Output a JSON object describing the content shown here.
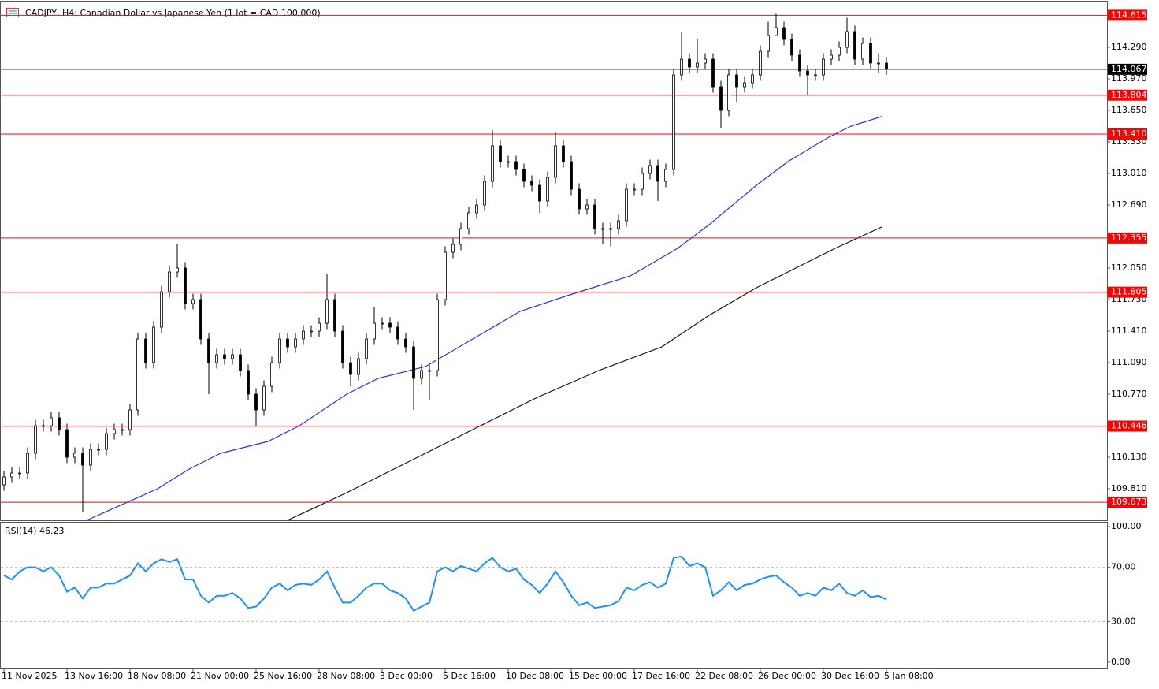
{
  "chart_data": {
    "type": "candlestick",
    "title": "CADJPY, H4:  Canadian Dollar vs Japanese Yen (1 lot = CAD 100,000)",
    "categories": [
      "11 Nov 2025",
      null,
      null,
      null,
      null,
      null,
      null,
      null,
      "13 Nov 16:00",
      null,
      null,
      null,
      null,
      null,
      null,
      null,
      "18 Nov 08:00",
      null,
      null,
      null,
      null,
      null,
      null,
      null,
      "21 Nov 00:00",
      null,
      null,
      null,
      null,
      null,
      null,
      null,
      "25 Nov 16:00",
      null,
      null,
      null,
      null,
      null,
      null,
      null,
      "28 Nov 08:00",
      null,
      null,
      null,
      null,
      null,
      null,
      null,
      "3 Dec 00:00",
      null,
      null,
      null,
      null,
      null,
      null,
      null,
      "5 Dec 16:00",
      null,
      null,
      null,
      null,
      null,
      null,
      null,
      "10 Dec 08:00",
      null,
      null,
      null,
      null,
      null,
      null,
      null,
      "15 Dec 00:00",
      null,
      null,
      null,
      null,
      null,
      null,
      null,
      "17 Dec 16:00",
      null,
      null,
      null,
      null,
      null,
      null,
      null,
      "22 Dec 08:00",
      null,
      null,
      null,
      null,
      null,
      null,
      null,
      "26 Dec 00:00",
      null,
      null,
      null,
      null,
      null,
      null,
      null,
      "30 Dec 16:00",
      null,
      null,
      null,
      null,
      null,
      null,
      null,
      "5 Jan 08:00"
    ],
    "open": [
      109.85,
      109.93,
      109.97,
      109.97,
      110.17,
      110.45,
      110.45,
      110.53,
      110.41,
      110.13,
      110.17,
      110.05,
      110.21,
      110.21,
      110.37,
      110.41,
      110.41,
      110.61,
      111.33,
      111.09,
      111.45,
      111.81,
      112.01,
      112.05,
      111.69,
      111.73,
      111.33,
      111.09,
      111.17,
      111.13,
      111.17,
      111.01,
      110.77,
      110.61,
      110.85,
      111.09,
      111.33,
      111.25,
      111.33,
      111.41,
      111.41,
      111.49,
      111.73,
      111.41,
      111.09,
      110.97,
      111.13,
      111.33,
      111.49,
      111.49,
      111.45,
      111.33,
      111.25,
      110.93,
      111.01,
      111.01,
      111.73,
      112.21,
      112.29,
      112.45,
      112.61,
      112.69,
      112.93,
      113.29,
      113.13,
      113.13,
      113.05,
      112.93,
      112.89,
      112.73,
      112.97,
      113.29,
      113.13,
      112.85,
      112.65,
      112.69,
      112.45,
      112.45,
      112.45,
      112.53,
      112.85,
      112.85,
      113.01,
      113.09,
      112.93,
      113.05,
      114.01,
      114.17,
      114.09,
      114.13,
      114.17,
      113.89,
      113.65,
      114.01,
      113.89,
      113.93,
      114.01,
      114.25,
      114.41,
      114.49,
      114.37,
      114.21,
      114.05,
      114.01,
      114.01,
      114.17,
      114.21,
      114.29,
      114.45,
      114.17,
      114.33,
      114.13,
      114.13
    ],
    "high": [
      109.99,
      110.03,
      110.03,
      110.23,
      110.51,
      110.51,
      110.59,
      110.59,
      110.47,
      110.23,
      110.23,
      110.27,
      110.27,
      110.43,
      110.47,
      110.47,
      110.67,
      111.39,
      111.39,
      111.51,
      111.87,
      112.07,
      112.29,
      112.11,
      111.79,
      111.79,
      111.39,
      111.23,
      111.23,
      111.23,
      111.23,
      111.07,
      110.83,
      110.91,
      111.15,
      111.39,
      111.39,
      111.39,
      111.47,
      111.47,
      111.55,
      111.99,
      111.79,
      111.47,
      111.15,
      111.19,
      111.39,
      111.65,
      111.55,
      111.55,
      111.51,
      111.39,
      111.31,
      111.07,
      111.07,
      111.79,
      112.27,
      112.35,
      112.51,
      112.67,
      112.75,
      112.99,
      113.45,
      113.35,
      113.19,
      113.19,
      113.11,
      112.99,
      112.95,
      113.03,
      113.43,
      113.35,
      113.19,
      112.91,
      112.75,
      112.75,
      112.51,
      112.51,
      112.59,
      112.91,
      112.91,
      113.07,
      113.15,
      113.15,
      113.11,
      114.07,
      114.45,
      114.23,
      114.37,
      114.23,
      114.23,
      113.95,
      114.07,
      114.07,
      113.99,
      114.07,
      114.31,
      114.55,
      114.63,
      114.55,
      114.43,
      114.27,
      114.11,
      114.07,
      114.23,
      114.27,
      114.35,
      114.59,
      114.51,
      114.39,
      114.39,
      114.23,
      114.19
    ],
    "low": [
      109.79,
      109.87,
      109.91,
      109.91,
      110.11,
      110.39,
      110.39,
      110.35,
      110.07,
      110.07,
      109.57,
      109.99,
      110.15,
      110.15,
      110.31,
      110.35,
      110.35,
      110.55,
      111.03,
      111.03,
      111.39,
      111.75,
      111.95,
      111.63,
      111.63,
      111.27,
      110.77,
      111.03,
      111.07,
      111.07,
      110.95,
      110.71,
      110.45,
      110.55,
      110.79,
      111.03,
      111.19,
      111.19,
      111.27,
      111.35,
      111.35,
      111.43,
      111.35,
      111.03,
      110.85,
      110.91,
      111.07,
      111.27,
      111.43,
      111.39,
      111.27,
      111.19,
      110.61,
      110.87,
      110.71,
      110.95,
      111.67,
      112.15,
      112.23,
      112.39,
      112.55,
      112.63,
      112.87,
      113.07,
      113.07,
      112.99,
      112.87,
      112.83,
      112.61,
      112.67,
      112.91,
      113.07,
      112.79,
      112.59,
      112.59,
      112.39,
      112.29,
      112.27,
      112.39,
      112.47,
      112.79,
      112.79,
      112.95,
      112.73,
      112.87,
      112.99,
      113.95,
      114.03,
      114.03,
      114.07,
      113.83,
      113.47,
      113.59,
      113.73,
      113.83,
      113.87,
      113.95,
      114.19,
      114.43,
      114.31,
      114.15,
      113.99,
      113.81,
      113.95,
      113.95,
      114.11,
      114.15,
      114.23,
      114.11,
      114.11,
      114.07,
      114.03,
      114.01
    ],
    "close": [
      109.93,
      109.97,
      109.97,
      110.17,
      110.45,
      110.45,
      110.53,
      110.41,
      110.13,
      110.17,
      110.05,
      110.21,
      110.21,
      110.37,
      110.41,
      110.41,
      110.61,
      111.33,
      111.09,
      111.45,
      111.81,
      112.01,
      112.05,
      111.69,
      111.73,
      111.33,
      111.09,
      111.17,
      111.13,
      111.17,
      111.01,
      110.77,
      110.61,
      110.85,
      111.09,
      111.33,
      111.25,
      111.33,
      111.41,
      111.41,
      111.49,
      111.73,
      111.41,
      111.09,
      110.97,
      111.13,
      111.33,
      111.49,
      111.49,
      111.45,
      111.33,
      111.25,
      110.93,
      111.01,
      111.01,
      111.73,
      112.21,
      112.29,
      112.45,
      112.61,
      112.69,
      112.93,
      113.29,
      113.13,
      113.13,
      113.05,
      112.93,
      112.89,
      112.73,
      112.97,
      113.29,
      113.13,
      112.85,
      112.65,
      112.69,
      112.45,
      112.45,
      112.45,
      112.53,
      112.85,
      112.85,
      113.01,
      113.09,
      112.93,
      113.05,
      114.01,
      114.17,
      114.09,
      114.13,
      114.17,
      113.89,
      113.65,
      114.01,
      113.89,
      113.93,
      114.01,
      114.25,
      114.41,
      114.49,
      114.37,
      114.21,
      114.05,
      114.01,
      114.01,
      114.17,
      114.21,
      114.29,
      114.45,
      114.17,
      114.33,
      114.13,
      114.13,
      114.067
    ],
    "up_color": "#ffffff",
    "down_color": "#000000",
    "ylim": [
      109.49,
      114.754
    ],
    "yticks": [
      {
        "value": 114.29,
        "label": "114.290"
      },
      {
        "value": 113.97,
        "label": "113.970"
      },
      {
        "value": 113.65,
        "label": "113.650"
      },
      {
        "value": 113.33,
        "label": "113.330"
      },
      {
        "value": 113.01,
        "label": "113.010"
      },
      {
        "value": 112.69,
        "label": "112.690"
      },
      {
        "value": 112.05,
        "label": "112.050"
      },
      {
        "value": 111.73,
        "label": "111.730"
      },
      {
        "value": 111.41,
        "label": "111.410"
      },
      {
        "value": 111.09,
        "label": "111.090"
      },
      {
        "value": 110.77,
        "label": "110.770"
      },
      {
        "value": 110.13,
        "label": "110.130"
      },
      {
        "value": 109.81,
        "label": "109.810"
      }
    ],
    "levels": [
      114.615,
      113.804,
      {
        "value": 113.41,
        "label": "113.410"
      },
      112.355,
      111.805,
      110.446,
      109.673
    ],
    "level_color": "#ff0000",
    "current_price": 114.067,
    "moving_averages": [
      {
        "color": "#2233ee",
        "x": [
          10.5,
          19.5,
          23.5,
          27.5,
          33.5,
          37.5,
          43.5,
          47.5,
          53.5,
          59.5,
          65.5,
          71.5,
          79.5,
          85.5,
          89.5,
          95.5,
          99.5,
          104.5,
          107.5,
          111.5
        ],
        "values": [
          109.49,
          109.81,
          110.01,
          110.17,
          110.29,
          110.45,
          110.77,
          110.93,
          111.05,
          111.33,
          111.61,
          111.77,
          111.97,
          112.25,
          112.49,
          112.89,
          113.13,
          113.37,
          113.49,
          113.59
        ]
      },
      {
        "color": "#111111",
        "x": [
          36,
          43.5,
          51.5,
          59.5,
          67.5,
          75.5,
          83.5,
          89.5,
          95.5,
          99.5,
          105.5,
          111.5
        ],
        "values": [
          109.49,
          109.77,
          110.09,
          110.41,
          110.73,
          111.01,
          111.25,
          111.57,
          111.85,
          112.01,
          112.25,
          112.47
        ]
      }
    ],
    "rsi": {
      "title": "RSI(14) 46.23",
      "color": "#1e90ff",
      "ylim": [
        -4.65,
        103.5
      ],
      "yticks": [
        {
          "value": 100,
          "label": "100.00"
        },
        {
          "value": 70,
          "label": "70.00"
        },
        {
          "value": 30,
          "label": "30.00"
        },
        {
          "value": 0,
          "label": "0.00"
        }
      ],
      "values": [
        64,
        61,
        67,
        70,
        70,
        67,
        70,
        64,
        52,
        55,
        47,
        55,
        55,
        58,
        58,
        61,
        64,
        73,
        67,
        73,
        76,
        74,
        76,
        61,
        61,
        49,
        44,
        49,
        49,
        51,
        47,
        40,
        41,
        47,
        55,
        58,
        53,
        57,
        58,
        57,
        61,
        67,
        55,
        44,
        44,
        49,
        55,
        58,
        58,
        53,
        51,
        47,
        38,
        41,
        44,
        67,
        70,
        67,
        71,
        69,
        67,
        73,
        77,
        70,
        67,
        69,
        61,
        57,
        51,
        58,
        67,
        59,
        49,
        42,
        44,
        40,
        41,
        42,
        45,
        55,
        53,
        57,
        59,
        55,
        58,
        77,
        78,
        71,
        73,
        70,
        49,
        53,
        59,
        53,
        57,
        58,
        61,
        63,
        64,
        59,
        55,
        49,
        51,
        49,
        55,
        53,
        58,
        51,
        49,
        53,
        48,
        49,
        46.23
      ]
    }
  }
}
